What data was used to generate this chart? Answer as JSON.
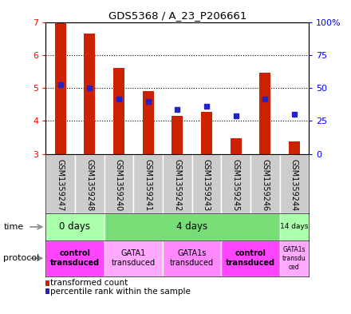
{
  "title": "GDS5368 / A_23_P206661",
  "samples": [
    "GSM1359247",
    "GSM1359248",
    "GSM1359240",
    "GSM1359241",
    "GSM1359242",
    "GSM1359243",
    "GSM1359245",
    "GSM1359246",
    "GSM1359244"
  ],
  "bar_values": [
    7.0,
    6.65,
    5.6,
    4.9,
    4.15,
    4.27,
    3.47,
    5.45,
    3.38
  ],
  "bar_base": 3.0,
  "dot_values": [
    5.1,
    5.0,
    4.65,
    4.6,
    4.35,
    4.45,
    4.15,
    4.65,
    4.2
  ],
  "ylim": [
    3,
    7
  ],
  "yticks": [
    3,
    4,
    5,
    6,
    7
  ],
  "right_yticks": [
    0,
    25,
    50,
    75,
    100
  ],
  "right_ytick_labels": [
    "0",
    "25",
    "50",
    "75",
    "100%"
  ],
  "bar_color": "#cc2200",
  "dot_color": "#2222cc",
  "label_bg": "#cccccc",
  "time_groups": [
    {
      "label": "0 days",
      "start": 0,
      "end": 2,
      "color": "#aaffaa"
    },
    {
      "label": "4 days",
      "start": 2,
      "end": 8,
      "color": "#77dd77"
    },
    {
      "label": "14 days",
      "start": 8,
      "end": 9,
      "color": "#aaffaa"
    }
  ],
  "protocol_groups": [
    {
      "label": "control\ntransduced",
      "start": 0,
      "end": 2,
      "color": "#ff44ff",
      "bold": true
    },
    {
      "label": "GATA1\ntransduced",
      "start": 2,
      "end": 4,
      "color": "#ffaaff",
      "bold": false
    },
    {
      "label": "GATA1s\ntransduced",
      "start": 4,
      "end": 6,
      "color": "#ff88ff",
      "bold": false
    },
    {
      "label": "control\ntransduced",
      "start": 6,
      "end": 8,
      "color": "#ff44ff",
      "bold": true
    },
    {
      "label": "GATA1s\ntransdu\nced",
      "start": 8,
      "end": 9,
      "color": "#ffaaff",
      "bold": false
    }
  ],
  "legend_items": [
    {
      "label": "transformed count",
      "color": "#cc2200"
    },
    {
      "label": "percentile rank within the sample",
      "color": "#2222cc"
    }
  ]
}
